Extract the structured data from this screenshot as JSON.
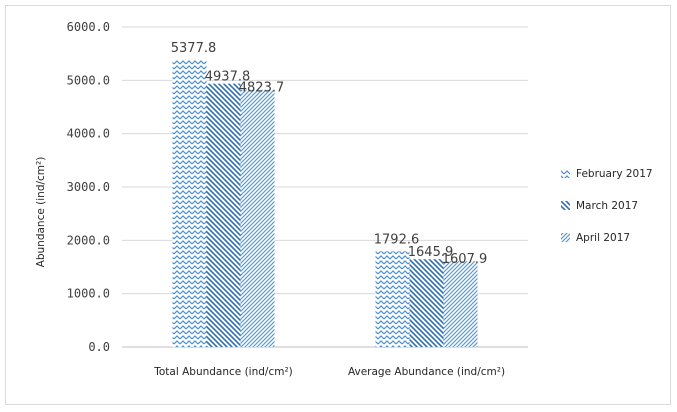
{
  "chart_data": {
    "type": "bar",
    "categories": [
      "Total Abundance (ind/cm²)",
      "Average Abundance (ind/cm²)"
    ],
    "series": [
      {
        "name": "February 2017",
        "values": [
          5377.8,
          1792.6
        ],
        "pattern": "zigzag",
        "color": "#4a8fcf"
      },
      {
        "name": "March 2017",
        "values": [
          4937.8,
          1645.9
        ],
        "pattern": "diagonal-down",
        "color": "#2e6fb2"
      },
      {
        "name": "April 2017",
        "values": [
          4823.7,
          1607.9
        ],
        "pattern": "diagonal-up",
        "color": "#5b9bd5"
      }
    ],
    "value_labels": [
      [
        "5377.8",
        "1792.6"
      ],
      [
        "4937.8",
        "1645.9"
      ],
      [
        "4823.7",
        "1607.9"
      ]
    ],
    "yticks": [
      "0.0",
      "1000.0",
      "2000.0",
      "3000.0",
      "4000.0",
      "5000.0",
      "6000.0"
    ],
    "ylim": [
      0,
      6000
    ],
    "ylabel": "Abundance (ind/cm²)",
    "xlabel": "",
    "title": "",
    "grid": true,
    "legend_position": "right"
  }
}
